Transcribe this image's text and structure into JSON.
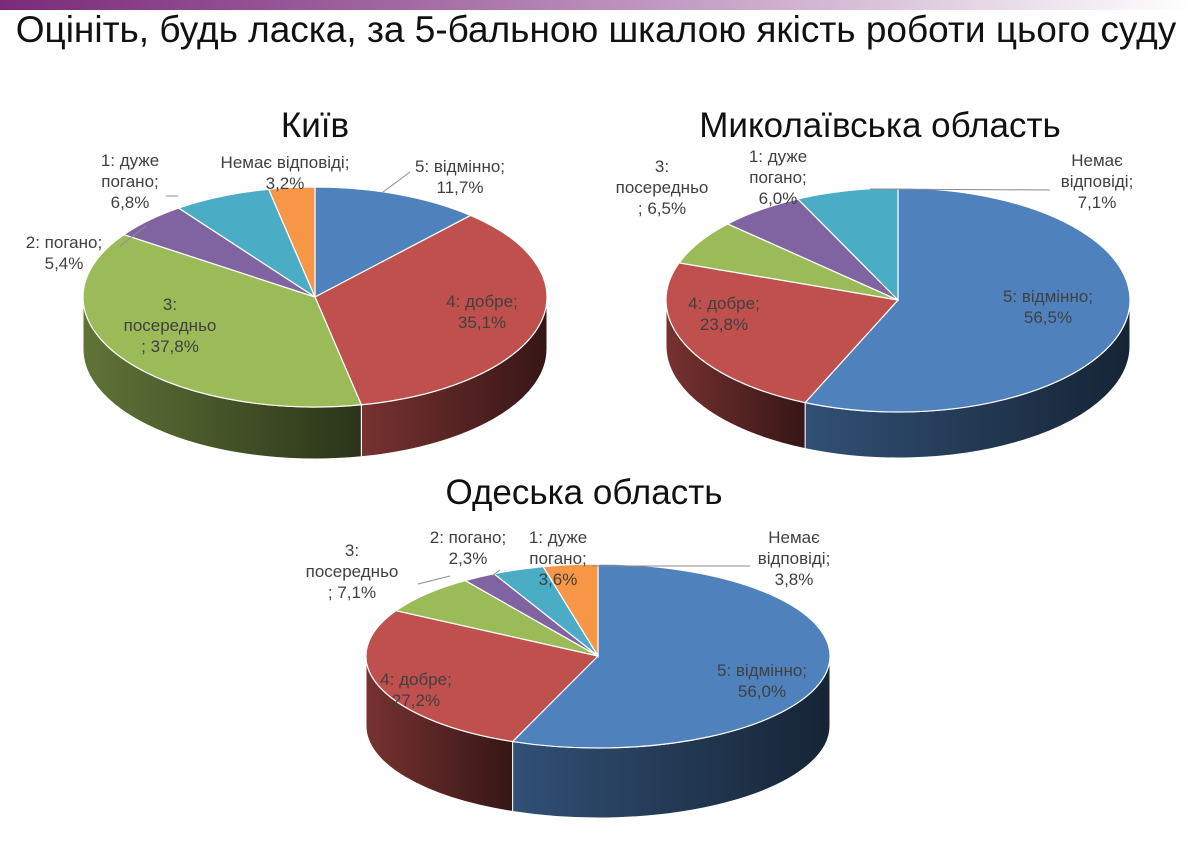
{
  "title": "Оцініть, будь ласка, за 5-бальною шкалою якість роботи цього суду",
  "chart_data": [
    {
      "type": "pie",
      "title": "Київ",
      "slices": [
        {
          "category": "5: відмінно",
          "value": 11.7,
          "label": "11,7%",
          "color": "#4f81bd"
        },
        {
          "category": "4: добре",
          "value": 35.1,
          "label": "35,1%",
          "color": "#c0504d"
        },
        {
          "category": "3: посередньо",
          "value": 37.8,
          "label": "37,8%",
          "color": "#9bbb59"
        },
        {
          "category": "2: погано",
          "value": 5.4,
          "label": "5,4%",
          "color": "#8064a2"
        },
        {
          "category": "1: дуже погано",
          "value": 6.8,
          "label": "6,8%",
          "color": "#4bacc6"
        },
        {
          "category": "Немає відповіді",
          "value": 3.2,
          "label": "3,2%",
          "color": "#f79646"
        }
      ]
    },
    {
      "type": "pie",
      "title": "Миколаївська область",
      "slices": [
        {
          "category": "5: відмінно",
          "value": 56.5,
          "label": "56,5%",
          "color": "#4f81bd"
        },
        {
          "category": "4: добре",
          "value": 23.8,
          "label": "23,8%",
          "color": "#c0504d"
        },
        {
          "category": "3: посередньо",
          "value": 6.5,
          "label": "6,5%",
          "color": "#9bbb59"
        },
        {
          "category": "1: дуже погано",
          "value": 6.0,
          "label": "6,0%",
          "color": "#8064a2"
        },
        {
          "category": "Немає відповіді",
          "value": 7.1,
          "label": "7,1%",
          "color": "#4bacc6"
        }
      ]
    },
    {
      "type": "pie",
      "title": "Одеська область",
      "slices": [
        {
          "category": "5: відмінно",
          "value": 56.0,
          "label": "56,0%",
          "color": "#4f81bd"
        },
        {
          "category": "4: добре",
          "value": 27.2,
          "label": "27,2%",
          "color": "#c0504d"
        },
        {
          "category": "3: посередньо",
          "value": 7.1,
          "label": "7,1%",
          "color": "#9bbb59"
        },
        {
          "category": "2: погано",
          "value": 2.3,
          "label": "2,3%",
          "color": "#8064a2"
        },
        {
          "category": "1: дуже погано",
          "value": 3.6,
          "label": "3,6%",
          "color": "#4bacc6"
        },
        {
          "category": "Немає відповіді",
          "value": 3.8,
          "label": "3,8%",
          "color": "#f79646"
        }
      ]
    }
  ]
}
